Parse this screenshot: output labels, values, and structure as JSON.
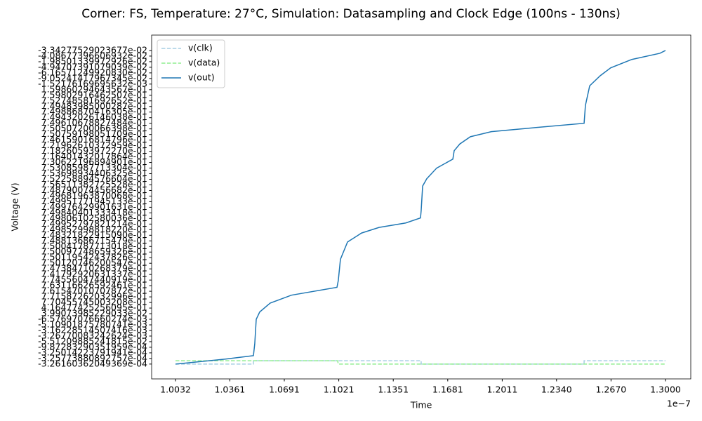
{
  "chart_data": {
    "type": "line",
    "title": "Corner: FS, Temperature: 27°C, Simulation: Datasampling and Clock Edge (100ns - 130ns)",
    "xlabel": "Time",
    "ylabel": "Voltage (V)",
    "x_offset_label": "1e−7",
    "xlim": [
      0.98874,
      1.31531
    ],
    "xticks": [
      1.0032,
      1.0361,
      1.0691,
      1.1021,
      1.1351,
      1.1681,
      {
        "value": 1.2011,
        "label": "1.2011"
      },
      {
        "value": 1.234,
        "label": "1.2340"
      },
      {
        "value": 1.267,
        "label": "1.2670"
      },
      {
        "value": 1.3,
        "label": "1.3000"
      }
    ],
    "ylim": [
      -2.65,
      58.75
    ],
    "yticks": [
      {
        "value": 0,
        "label": "-3.26160362049369e-04"
      },
      {
        "value": 1,
        "label": "-3.25773880892757e-04"
      },
      {
        "value": 2,
        "label": "-3.25014223791941e-04"
      },
      {
        "value": 3,
        "label": "-9.87283290351959e-04"
      },
      {
        "value": 4,
        "label": "-5.51209885241815e-02"
      },
      {
        "value": 5,
        "label": "-3.26770083242624e-03"
      },
      {
        "value": 6,
        "label": "-3.16228514507416e-03"
      },
      {
        "value": 7,
        "label": "-5.10901875780741e-03"
      },
      {
        "value": 8,
        "label": "-6.57697076660274e-03"
      },
      {
        "value": 9,
        "label": "3.99073985229033e-02"
      },
      {
        "value": 10,
        "label": "4.16477425256095e-01"
      },
      {
        "value": 11,
        "label": "7.70455745003208e-01"
      },
      {
        "value": 12,
        "label": "7.71587262032996e-01"
      },
      {
        "value": 13,
        "label": "7.61547010707872e-01"
      },
      {
        "value": 14,
        "label": "7.63116626592461e-01"
      },
      {
        "value": 15,
        "label": "7.74556047440919e-01"
      },
      {
        "value": 16,
        "label": "7.41792920631337e-01"
      },
      {
        "value": 17,
        "label": "7.47384710268379e-01"
      },
      {
        "value": 18,
        "label": "7.50120746200547e-01"
      },
      {
        "value": 19,
        "label": "7.50119542437826e-01"
      },
      {
        "value": 20,
        "label": "7.50097748659326e-01"
      },
      {
        "value": 21,
        "label": "7.50041787713018e-01"
      },
      {
        "value": 22,
        "label": "7.48813686715479e-01"
      },
      {
        "value": 23,
        "label": "7.48321822915090e-01"
      },
      {
        "value": 24,
        "label": "7.49852998818220e-01"
      },
      {
        "value": 25,
        "label": "7.49952797821214e-01"
      },
      {
        "value": 26,
        "label": "7.49806102580036e-01"
      },
      {
        "value": 27,
        "label": "7.49840401333418e-01"
      },
      {
        "value": 28,
        "label": "7.49976429901631e-01"
      },
      {
        "value": 29,
        "label": "7.49951771945133e-01"
      },
      {
        "value": 30,
        "label": "7.49681963870068e-01"
      },
      {
        "value": 31,
        "label": "7.48790074456682e-01"
      },
      {
        "value": 32,
        "label": "7.56511382725528e-01"
      },
      {
        "value": 33,
        "label": "7.52258894576604e-01"
      },
      {
        "value": 34,
        "label": "7.53698934406325e-01"
      },
      {
        "value": 35,
        "label": "7.53085987713304e-01"
      },
      {
        "value": 36,
        "label": "7.30622196894901e-01"
      },
      {
        "value": 37,
        "label": "7.16401432017864e-01"
      },
      {
        "value": 38,
        "label": "7.18260593972270e-01"
      },
      {
        "value": 39,
        "label": "7.21962610372959e-01"
      },
      {
        "value": 40,
        "label": "7.46159016814796e-01"
      },
      {
        "value": 41,
        "label": "7.50759198051709e-01"
      },
      {
        "value": 42,
        "label": "7.50507200066398e-01"
      },
      {
        "value": 43,
        "label": "7.49610678827484e-01"
      },
      {
        "value": 44,
        "label": "7.49432026146038e-01"
      },
      {
        "value": 45,
        "label": "7.49886870416305e-01"
      },
      {
        "value": 46,
        "label": "7.49483985000287e-01"
      },
      {
        "value": 47,
        "label": "7.52748581692652e-01"
      },
      {
        "value": 48,
        "label": "7.59802916462507e-01"
      },
      {
        "value": 49,
        "label": "1.59860294643567e-01"
      },
      {
        "value": 50,
        "label": "-1.52176169695632e-03"
      },
      {
        "value": 51,
        "label": "-9.05241417967345e-02"
      },
      {
        "value": 52,
        "label": "-6.16571249920830e-02"
      },
      {
        "value": 53,
        "label": "-4.94707391079039e-02"
      },
      {
        "value": 54,
        "label": "-1.98501339972926e-02"
      },
      {
        "value": 55,
        "label": "-4.08677396606932e-02"
      },
      {
        "value": 56,
        "label": "-3.34277529023677e-02"
      }
    ],
    "legend": "upper left",
    "series": [
      {
        "name": "v(clk)",
        "color": "#a6cee3",
        "dash": true,
        "x": [
          1.0032,
          1.0504,
          1.0504,
          1.152,
          1.152,
          1.2507,
          1.2507,
          1.3
        ],
        "values": [
          0,
          0,
          0.6,
          0.6,
          0,
          0,
          0.6,
          0.6
        ]
      },
      {
        "name": "v(data)",
        "color": "#90ee90",
        "dash": true,
        "x": [
          1.0032,
          1.1014,
          1.1018,
          1.3
        ],
        "values": [
          0.6,
          0.6,
          0,
          0
        ]
      },
      {
        "name": "v(out)",
        "color": "#1f77b4",
        "dash": false,
        "x": [
          1.0032,
          1.033,
          1.0504,
          1.0512,
          1.0521,
          1.0542,
          1.0606,
          1.0734,
          1.101,
          1.1018,
          1.1031,
          1.1074,
          1.1159,
          1.1265,
          1.1427,
          1.1516,
          1.152,
          1.1529,
          1.1554,
          1.1614,
          1.1712,
          1.172,
          1.1754,
          1.1818,
          1.1945,
          1.22,
          1.2507,
          1.2515,
          1.2541,
          1.2605,
          1.2668,
          1.2796,
          1.2966,
          1.3
        ],
        "values": [
          0,
          0.88,
          1.5,
          3.6,
          8.0,
          9.3,
          10.9,
          12.3,
          13.7,
          14.9,
          18.7,
          21.8,
          23.4,
          24.4,
          25.2,
          26.1,
          27.4,
          31.8,
          33.1,
          35.0,
          36.6,
          38.1,
          39.3,
          40.6,
          41.5,
          42.2,
          43.0,
          46.2,
          49.7,
          51.5,
          52.9,
          54.4,
          55.5,
          56.0
        ]
      }
    ]
  }
}
